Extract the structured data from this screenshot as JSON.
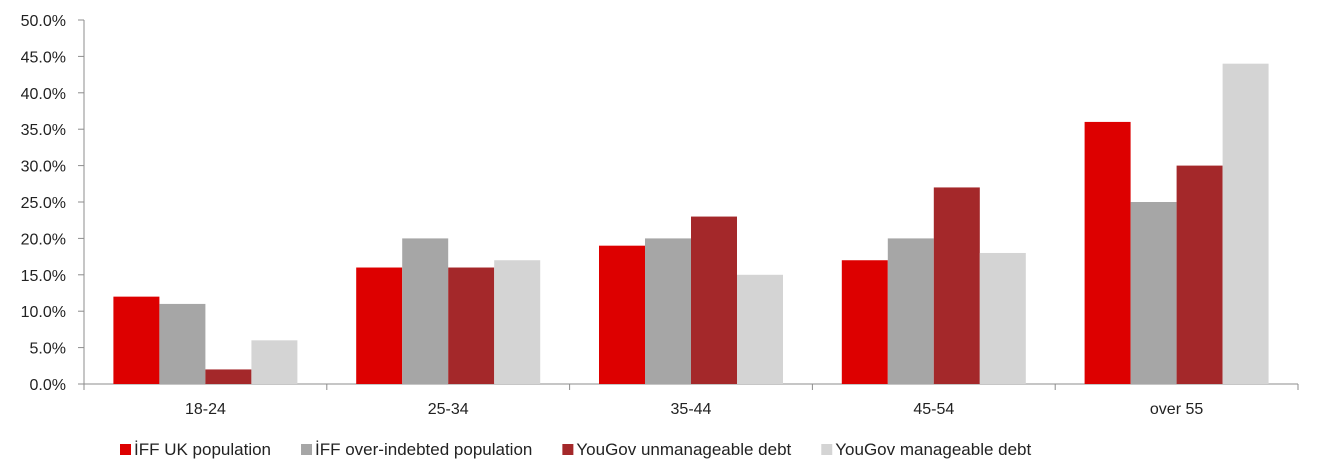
{
  "chart_data": {
    "type": "bar",
    "title": "",
    "xlabel": "",
    "ylabel": "",
    "categories": [
      "18-24",
      "25-34",
      "35-44",
      "45-54",
      "over 55"
    ],
    "ylim": [
      0,
      50
    ],
    "yticks": [
      "0.0%",
      "5.0%",
      "10.0%",
      "15.0%",
      "20.0%",
      "25.0%",
      "30.0%",
      "35.0%",
      "40.0%",
      "45.0%",
      "50.0%"
    ],
    "grid": false,
    "legend_position": "bottom",
    "series": [
      {
        "name": "İFF UK population",
        "color": "#dd0000",
        "values": [
          12,
          16,
          19,
          17,
          36
        ]
      },
      {
        "name": "İFF over-indebted population",
        "color": "#a6a6a6",
        "values": [
          11,
          20,
          20,
          20,
          25
        ]
      },
      {
        "name": "YouGov unmanageable debt",
        "color": "#a4282a",
        "values": [
          2,
          16,
          23,
          27,
          30
        ]
      },
      {
        "name": "YouGov manageable debt",
        "color": "#d4d4d4",
        "values": [
          6,
          17,
          15,
          18,
          44
        ]
      }
    ]
  }
}
